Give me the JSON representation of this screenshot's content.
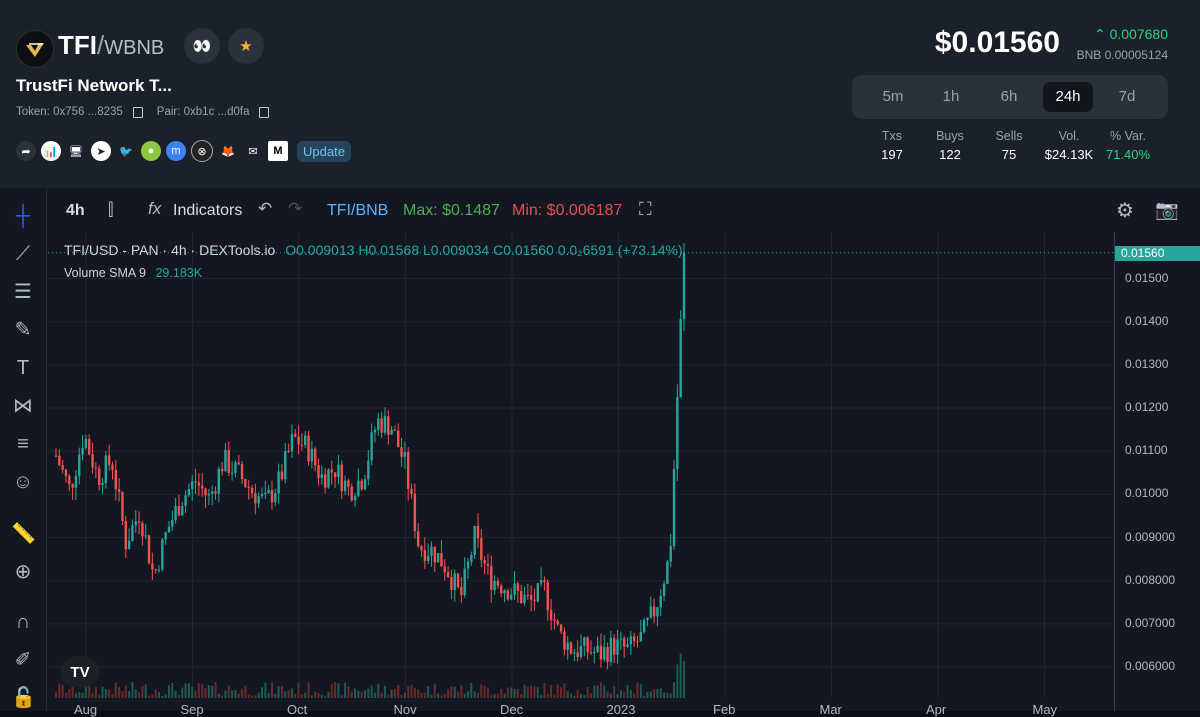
{
  "token": {
    "symbol": "TFI",
    "quote": "WBNB",
    "name": "TrustFi Network T...",
    "token_label": "Token: 0x756 ...8235",
    "pair_label": "Pair: 0xb1c ...d0fa"
  },
  "header": {
    "price": "$0.01560",
    "change": "0.007680",
    "bnb_price": "BNB 0.00005124",
    "update_label": "Update",
    "social_icons": [
      "share-icon",
      "chart-icon",
      "website-icon",
      "telegram-icon",
      "twitter-icon",
      "coingecko-icon",
      "coinmarketcap-icon",
      "dapp-icon",
      "metamask-icon",
      "email-icon",
      "medium-icon"
    ]
  },
  "timeframes": [
    {
      "label": "5m",
      "active": false
    },
    {
      "label": "1h",
      "active": false
    },
    {
      "label": "6h",
      "active": false
    },
    {
      "label": "24h",
      "active": true
    },
    {
      "label": "7d",
      "active": false
    }
  ],
  "stats": [
    {
      "label": "Txs",
      "value": "197",
      "green": false
    },
    {
      "label": "Buys",
      "value": "122",
      "green": false
    },
    {
      "label": "Sells",
      "value": "75",
      "green": false
    },
    {
      "label": "Vol.",
      "value": "$24.13K",
      "green": false
    },
    {
      "label": "% Var.",
      "value": "71.40%",
      "green": true
    }
  ],
  "toolbar": {
    "interval": "4h",
    "indicators": "Indicators",
    "pair": "TFI/BNB",
    "max": "Max: $0.1487",
    "min": "Min: $0.006187"
  },
  "legend": {
    "line1": "TFI/USD - PAN · 4h · DEXTools.io",
    "ohlc": "O0.009013  H0.01568  L0.009034  C0.01560  0.0₂6591 (+73.14%)",
    "volume": "Volume SMA 9",
    "volume_value": "29.183K"
  },
  "chart_data": {
    "type": "candlestick",
    "title": "TFI/USD - PAN · 4h · DEXTools.io",
    "x_labels": [
      "Aug",
      "Sep",
      "Oct",
      "Nov",
      "Dec",
      "2023",
      "Feb",
      "Mar",
      "Apr",
      "May"
    ],
    "y_ticks": [
      "0.01500",
      "0.01400",
      "0.01300",
      "0.01200",
      "0.01100",
      "0.01000",
      "0.009000",
      "0.008000",
      "0.007000",
      "0.006000"
    ],
    "ylim": [
      0.0057,
      0.0158
    ],
    "last_price": "0.01560",
    "max": 0.1487,
    "min": 0.006187,
    "close_path": [
      {
        "x": "Aug 1",
        "y": 0.0109
      },
      {
        "x": "Aug 5",
        "y": 0.0101
      },
      {
        "x": "Aug 8",
        "y": 0.0114
      },
      {
        "x": "Aug 12",
        "y": 0.0104
      },
      {
        "x": "Aug 16",
        "y": 0.0108
      },
      {
        "x": "Aug 20",
        "y": 0.0089
      },
      {
        "x": "Aug 24",
        "y": 0.0096
      },
      {
        "x": "Aug 28",
        "y": 0.0081
      },
      {
        "x": "Sep 1",
        "y": 0.0092
      },
      {
        "x": "Sep 5",
        "y": 0.0099
      },
      {
        "x": "Sep 9",
        "y": 0.0103
      },
      {
        "x": "Sep 13",
        "y": 0.0099
      },
      {
        "x": "Sep 17",
        "y": 0.0108
      },
      {
        "x": "Sep 21",
        "y": 0.0105
      },
      {
        "x": "Sep 25",
        "y": 0.0101
      },
      {
        "x": "Sep 29",
        "y": 0.0098
      },
      {
        "x": "Oct 3",
        "y": 0.0103
      },
      {
        "x": "Oct 7",
        "y": 0.0113
      },
      {
        "x": "Oct 11",
        "y": 0.0111
      },
      {
        "x": "Oct 15",
        "y": 0.0104
      },
      {
        "x": "Oct 19",
        "y": 0.0106
      },
      {
        "x": "Oct 23",
        "y": 0.0101
      },
      {
        "x": "Oct 27",
        "y": 0.0104
      },
      {
        "x": "Oct 31",
        "y": 0.0117
      },
      {
        "x": "Nov 4",
        "y": 0.0116
      },
      {
        "x": "Nov 8",
        "y": 0.0107
      },
      {
        "x": "Nov 11",
        "y": 0.0088
      },
      {
        "x": "Nov 15",
        "y": 0.0087
      },
      {
        "x": "Nov 19",
        "y": 0.0083
      },
      {
        "x": "Nov 23",
        "y": 0.0076
      },
      {
        "x": "Nov 27",
        "y": 0.009
      },
      {
        "x": "Dec 1",
        "y": 0.0081
      },
      {
        "x": "Dec 5",
        "y": 0.0079
      },
      {
        "x": "Dec 9",
        "y": 0.0077
      },
      {
        "x": "Dec 13",
        "y": 0.0075
      },
      {
        "x": "Dec 17",
        "y": 0.0078
      },
      {
        "x": "Dec 21",
        "y": 0.0068
      },
      {
        "x": "Dec 25",
        "y": 0.0064
      },
      {
        "x": "Dec 29",
        "y": 0.0064
      },
      {
        "x": "Jan 2",
        "y": 0.0063
      },
      {
        "x": "Jan 6",
        "y": 0.0065
      },
      {
        "x": "Jan 10",
        "y": 0.0064
      },
      {
        "x": "Jan 14",
        "y": 0.0067
      },
      {
        "x": "Jan 17",
        "y": 0.0074
      },
      {
        "x": "Jan 19",
        "y": 0.0086
      },
      {
        "x": "Jan 20",
        "y": 0.0156
      }
    ],
    "grid": true,
    "colors": {
      "up": "#26a69a",
      "down": "#ef5350"
    }
  }
}
